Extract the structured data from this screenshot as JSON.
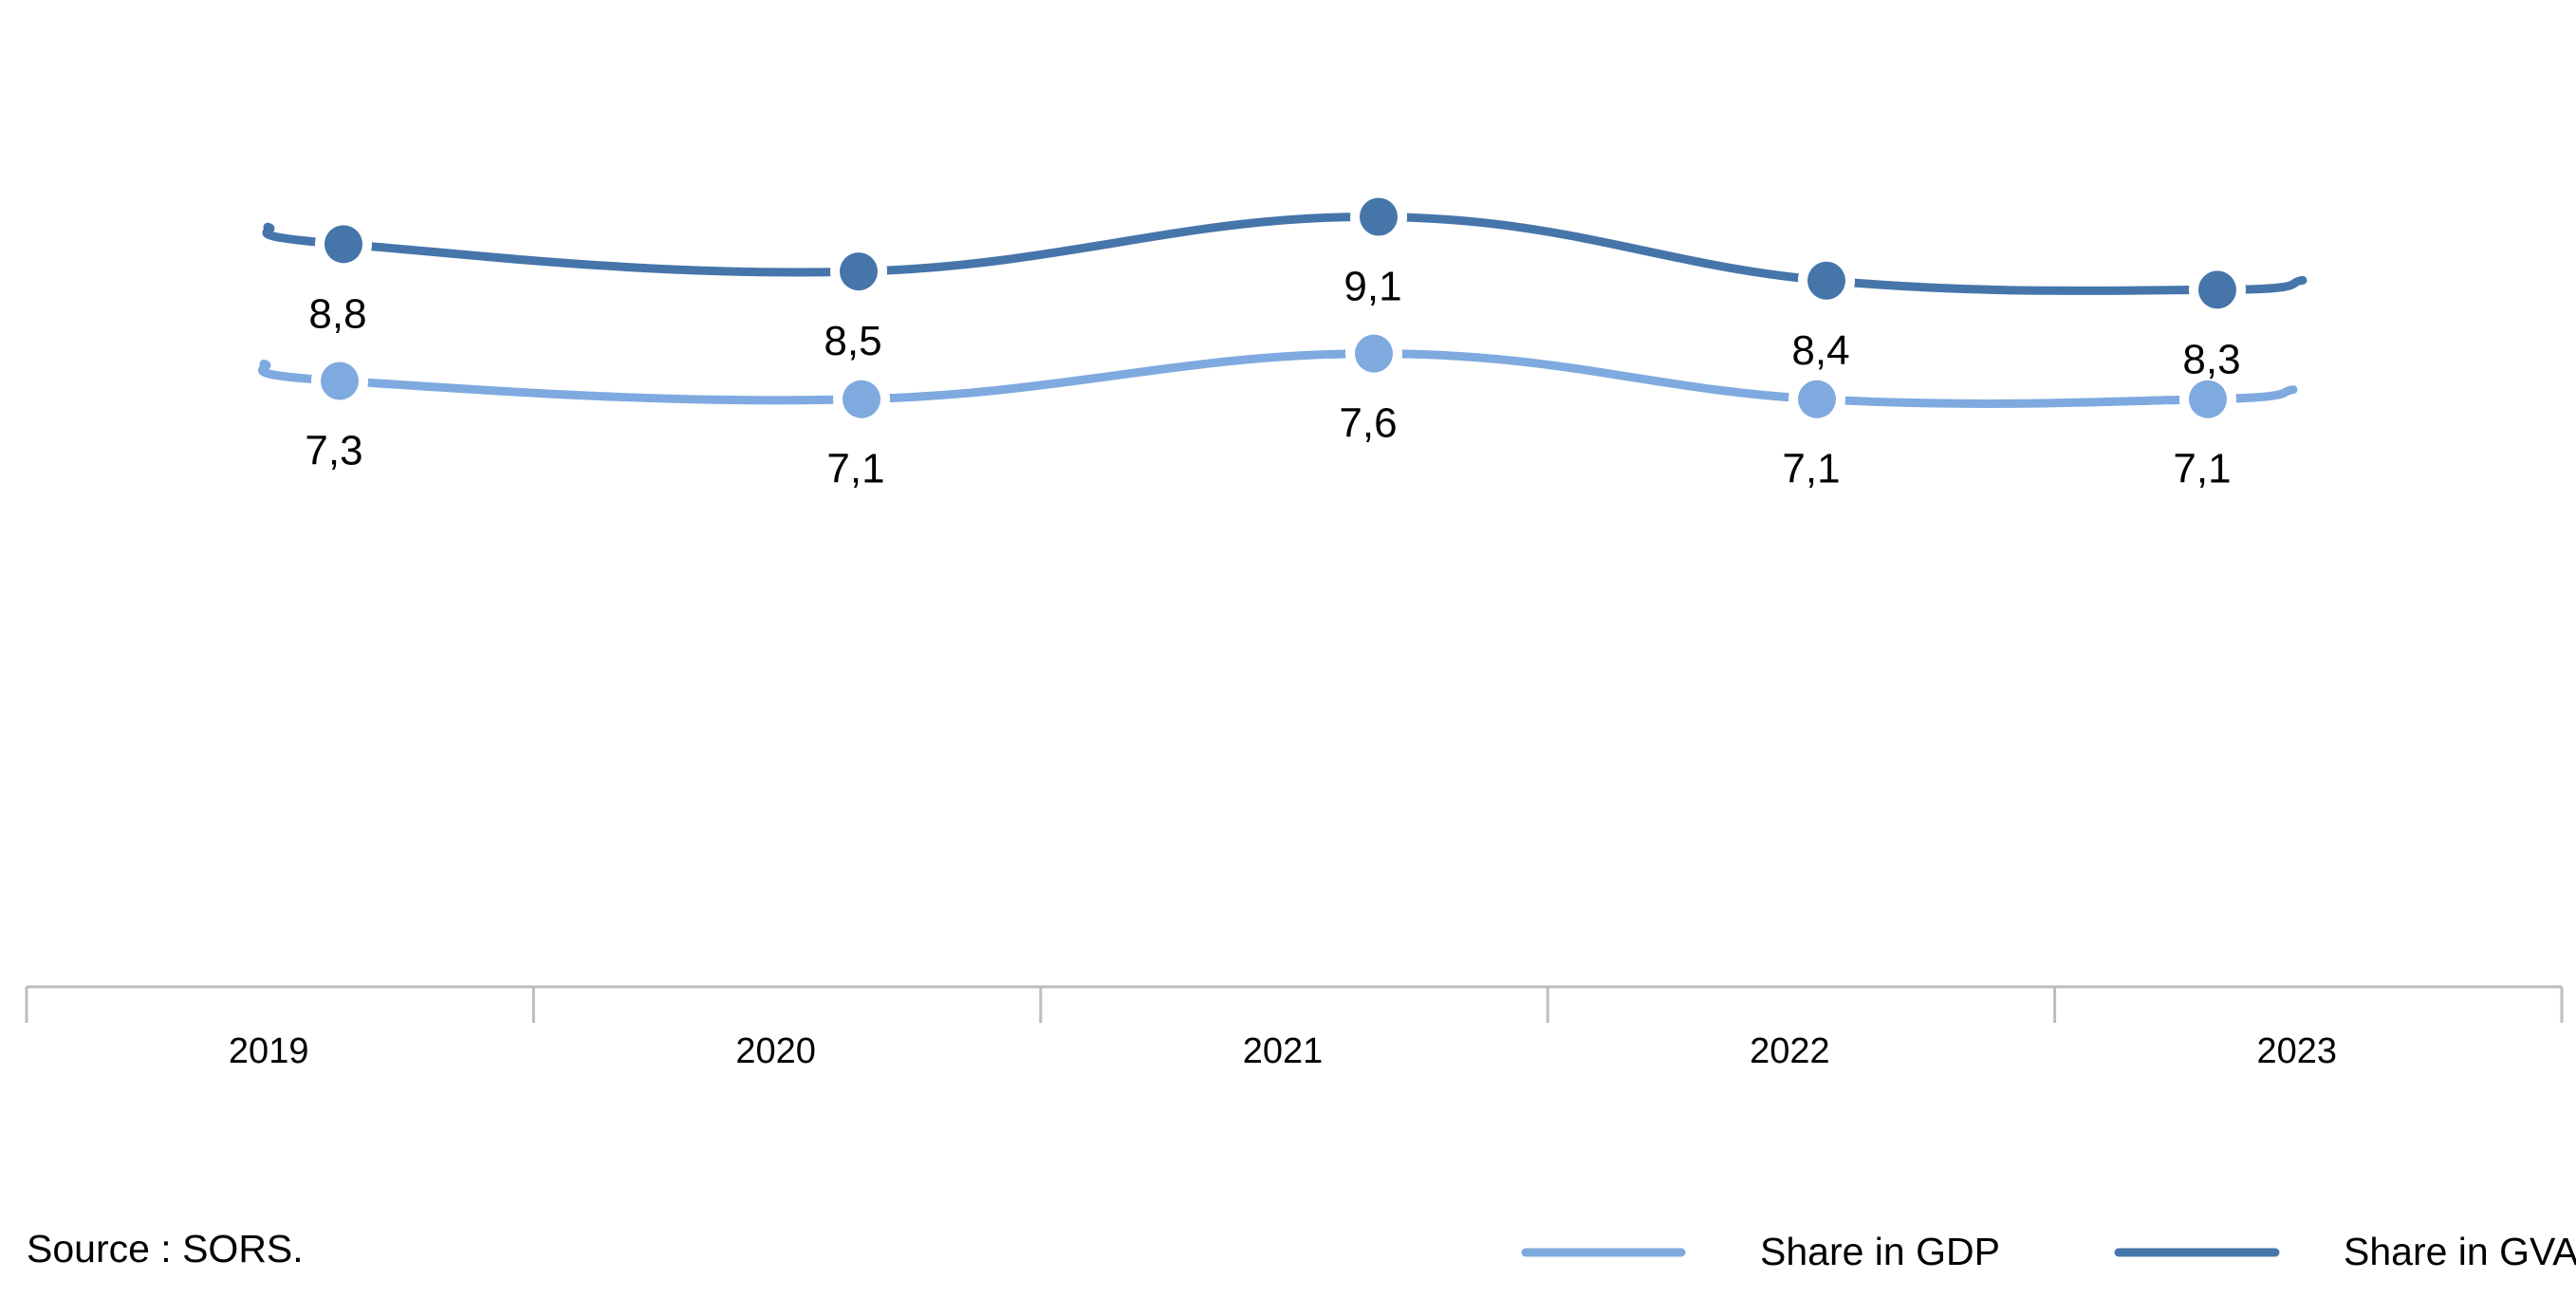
{
  "chart_data": {
    "type": "line",
    "categories": [
      "2019",
      "2020",
      "2021",
      "2022",
      "2023"
    ],
    "series": [
      {
        "name": "Share in GVA",
        "values": [
          8.8,
          8.5,
          9.1,
          8.4,
          8.3
        ],
        "labels": [
          "8,8",
          "8,5",
          "9,1",
          "8,4",
          "8,3"
        ],
        "color": "#4675aa"
      },
      {
        "name": "Share in GDP",
        "values": [
          7.3,
          7.1,
          7.6,
          7.1,
          7.1
        ],
        "labels": [
          "7,3",
          "7,1",
          "7,6",
          "7,1",
          "7,1"
        ],
        "color": "#7eaadf"
      }
    ],
    "source": "Source : SORS.",
    "grid": false,
    "legend": "bottom-right",
    "axis_color": "#bdbdbd"
  }
}
